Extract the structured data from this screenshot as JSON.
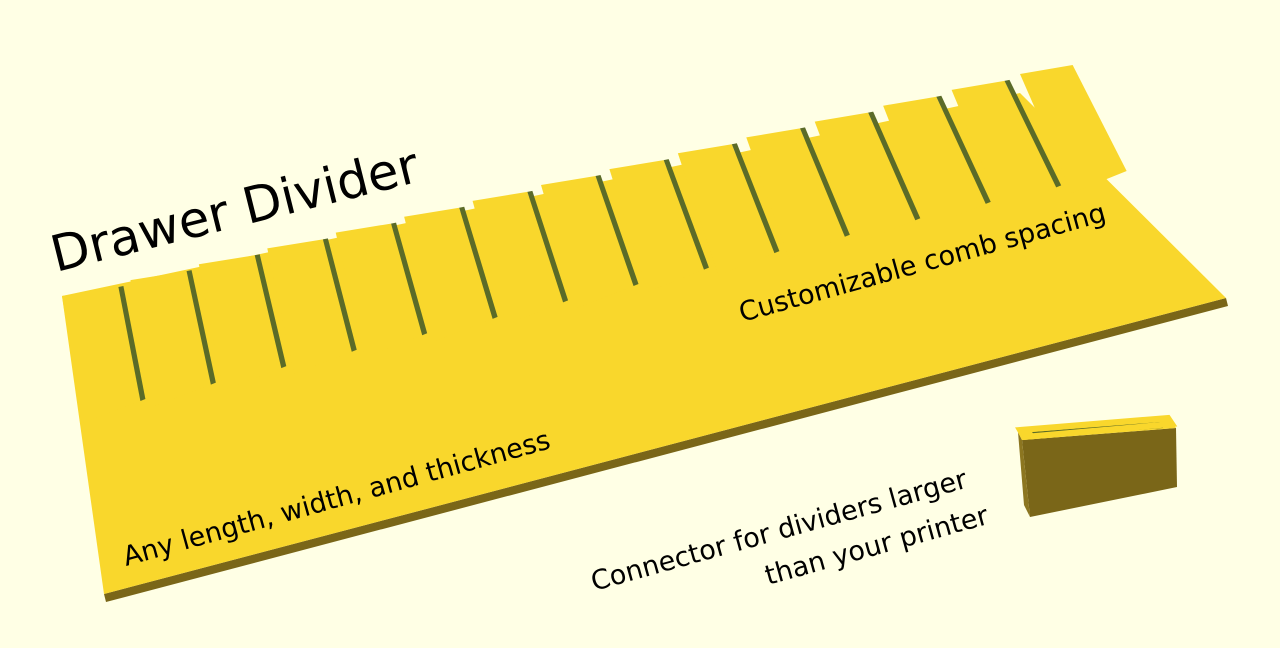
{
  "scene": {
    "background_color": "#ffffe5",
    "model_top_color": "#f9d72c",
    "model_side_color": "#7a6618",
    "slot_shadow_color": "#5b6b28",
    "slot_count": 15
  },
  "labels": {
    "title": "Drawer Divider",
    "comb_spacing": "Customizable comb spacing",
    "dimensions": "Any length, width, and thickness",
    "connector_line1": "Connector for dividers larger",
    "connector_line2": "than your printer"
  }
}
